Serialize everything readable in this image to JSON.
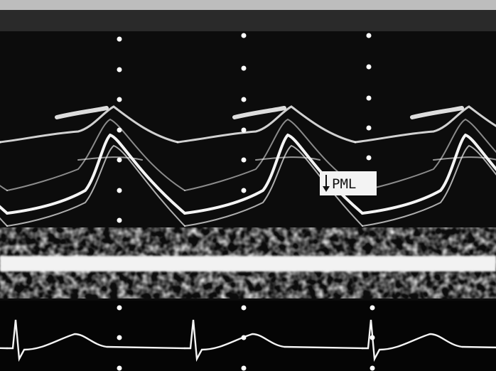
{
  "label": "PML"
}
